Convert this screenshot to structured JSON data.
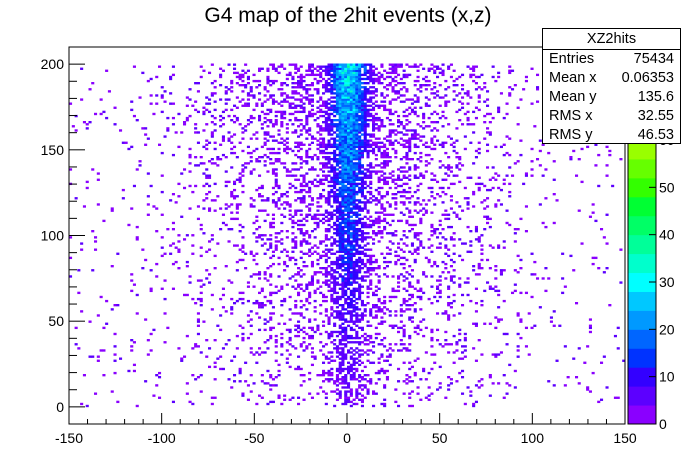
{
  "chart_data": {
    "type": "heatmap",
    "title": "G4 map of the 2hit events (x,z)",
    "xlabel": "",
    "ylabel": "",
    "xlim": [
      -150,
      150
    ],
    "ylim": [
      -10,
      210
    ],
    "x_ticks": [
      -150,
      -100,
      -50,
      0,
      50,
      100,
      150
    ],
    "y_ticks": [
      0,
      50,
      100,
      150,
      200
    ],
    "z_range": [
      0,
      60
    ],
    "z_ticks": [
      0,
      10,
      20,
      30,
      40,
      50,
      60
    ],
    "palette": [
      "#8a00ff",
      "#5c00ff",
      "#3300ff",
      "#0033ff",
      "#0066ff",
      "#0099ff",
      "#00c8ff",
      "#00ffff",
      "#00ffcc",
      "#00ff99",
      "#00ff66",
      "#00ff33",
      "#33ff00",
      "#66ff00",
      "#99ff00"
    ],
    "distribution": {
      "x_core_sigma": 7,
      "x_wide_sigma": 45,
      "y_range": [
        0,
        200
      ],
      "peak_x": 0,
      "peak_y": 190
    },
    "stats": {
      "name": "XZ2hits",
      "entries": "75434",
      "mean_x": "0.06353",
      "mean_y": "135.6",
      "rms_x": "32.55",
      "rms_y": "46.53"
    }
  },
  "stats_labels": {
    "entries": "Entries",
    "mean_x": "Mean x",
    "mean_y": "Mean y",
    "rms_x": "RMS x",
    "rms_y": "RMS y"
  }
}
